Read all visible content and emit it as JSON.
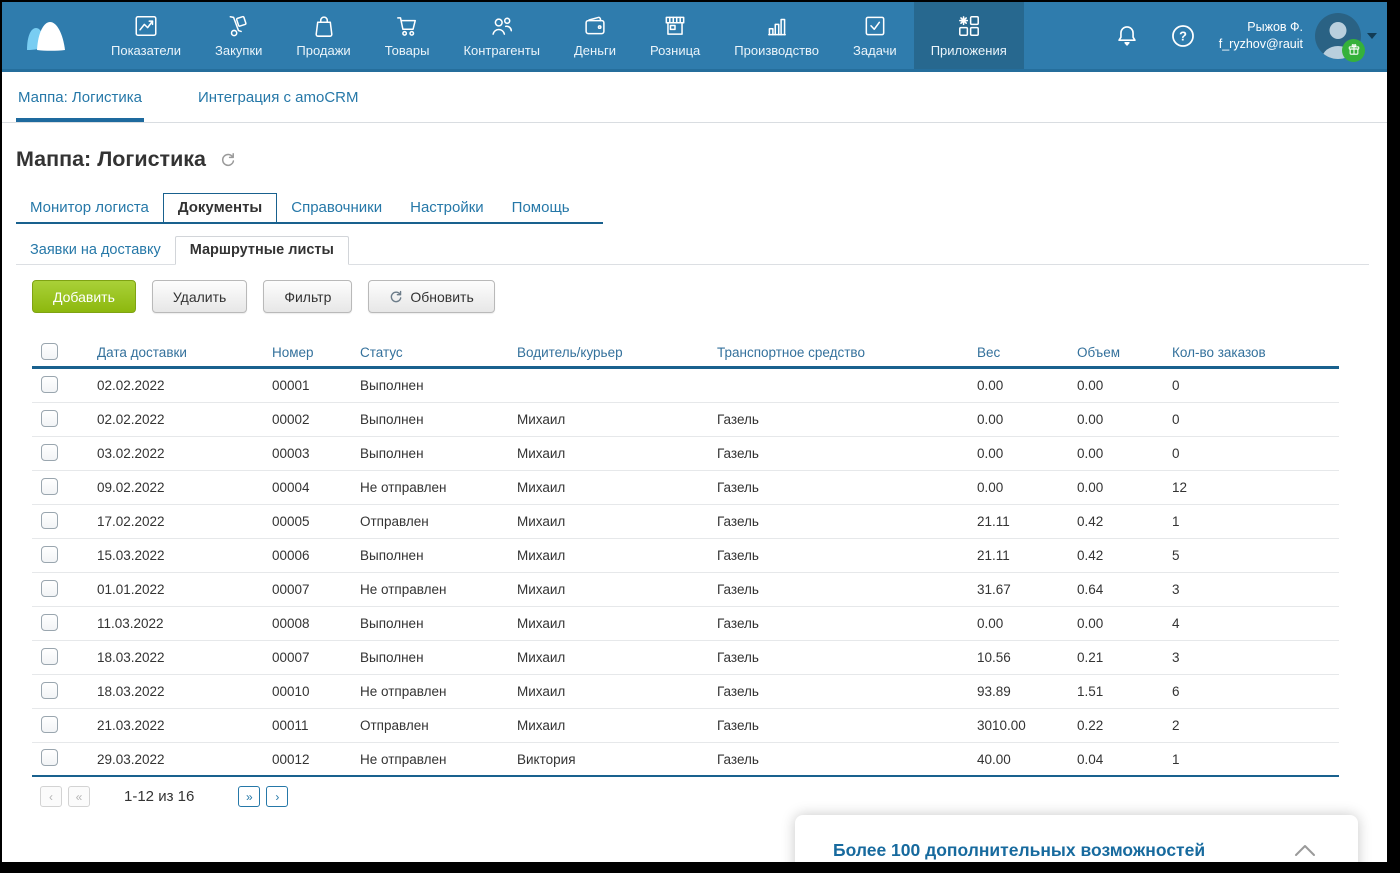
{
  "colors": {
    "navbar_bg": "#2f7cad",
    "navbar_active_bg": "#27688f",
    "link_blue": "#2678a8",
    "accent_line": "#19618e",
    "green_button": "#8db80e",
    "badge_green": "#35b13a",
    "banner_text": "#176a9e"
  },
  "topnav": {
    "items": [
      {
        "label": "Показатели",
        "icon": "metrics-icon"
      },
      {
        "label": "Закупки",
        "icon": "purchases-icon"
      },
      {
        "label": "Продажи",
        "icon": "sales-icon"
      },
      {
        "label": "Товары",
        "icon": "goods-icon"
      },
      {
        "label": "Контрагенты",
        "icon": "partners-icon"
      },
      {
        "label": "Деньги",
        "icon": "money-icon"
      },
      {
        "label": "Розница",
        "icon": "retail-icon"
      },
      {
        "label": "Производство",
        "icon": "production-icon"
      },
      {
        "label": "Задачи",
        "icon": "tasks-icon"
      },
      {
        "label": "Приложения",
        "icon": "apps-icon",
        "active": true
      }
    ],
    "user": {
      "name": "Рыжов Ф.",
      "email": "f_ryzhov@rauit"
    }
  },
  "app_tabs": [
    {
      "label": "Маппа: Логистика",
      "active": true
    },
    {
      "label": "Интеграция с amoCRM",
      "active": false
    }
  ],
  "page": {
    "title": "Маппа: Логистика"
  },
  "main_tabs": [
    {
      "label": "Монитор логиста",
      "active": false
    },
    {
      "label": "Документы",
      "active": true
    },
    {
      "label": "Справочники",
      "active": false
    },
    {
      "label": "Настройки",
      "active": false
    },
    {
      "label": "Помощь",
      "active": false
    }
  ],
  "sub_tabs": [
    {
      "label": "Заявки на доставку",
      "active": false
    },
    {
      "label": "Маршрутные листы",
      "active": true
    }
  ],
  "toolbar": {
    "add_label": "Добавить",
    "delete_label": "Удалить",
    "filter_label": "Фильтр",
    "refresh_label": "Обновить"
  },
  "table": {
    "columns": [
      "Дата доставки",
      "Номер",
      "Статус",
      "Водитель/курьер",
      "Транспортное средство",
      "Вес",
      "Объем",
      "Кол-во заказов"
    ],
    "rows": [
      [
        "02.02.2022",
        "00001",
        "Выполнен",
        "",
        "",
        "0.00",
        "0.00",
        "0"
      ],
      [
        "02.02.2022",
        "00002",
        "Выполнен",
        "Михаил",
        "Газель",
        "0.00",
        "0.00",
        "0"
      ],
      [
        "03.02.2022",
        "00003",
        "Выполнен",
        "Михаил",
        "Газель",
        "0.00",
        "0.00",
        "0"
      ],
      [
        "09.02.2022",
        "00004",
        "Не отправлен",
        "Михаил",
        "Газель",
        "0.00",
        "0.00",
        "12"
      ],
      [
        "17.02.2022",
        "00005",
        "Отправлен",
        "Михаил",
        "Газель",
        "21.11",
        "0.42",
        "1"
      ],
      [
        "15.03.2022",
        "00006",
        "Выполнен",
        "Михаил",
        "Газель",
        "21.11",
        "0.42",
        "5"
      ],
      [
        "01.01.2022",
        "00007",
        "Не отправлен",
        "Михаил",
        "Газель",
        "31.67",
        "0.64",
        "3"
      ],
      [
        "11.03.2022",
        "00008",
        "Выполнен",
        "Михаил",
        "Газель",
        "0.00",
        "0.00",
        "4"
      ],
      [
        "18.03.2022",
        "00007",
        "Выполнен",
        "Михаил",
        "Газель",
        "10.56",
        "0.21",
        "3"
      ],
      [
        "18.03.2022",
        "00010",
        "Не отправлен",
        "Михаил",
        "Газель",
        "93.89",
        "1.51",
        "6"
      ],
      [
        "21.03.2022",
        "00011",
        "Отправлен",
        "Михаил",
        "Газель",
        "3010.00",
        "0.22",
        "2"
      ],
      [
        "29.03.2022",
        "00012",
        "Не отправлен",
        "Виктория",
        "Газель",
        "40.00",
        "0.04",
        "1"
      ]
    ]
  },
  "pagination": {
    "range": "1-12 из 16",
    "buttons": [
      {
        "glyph": "‹",
        "enabled": false
      },
      {
        "glyph": "«",
        "enabled": false
      },
      {
        "glyph": "»",
        "enabled": true
      },
      {
        "glyph": "›",
        "enabled": true
      }
    ]
  },
  "banner": {
    "text": "Более 100 дополнительных возможностей"
  }
}
